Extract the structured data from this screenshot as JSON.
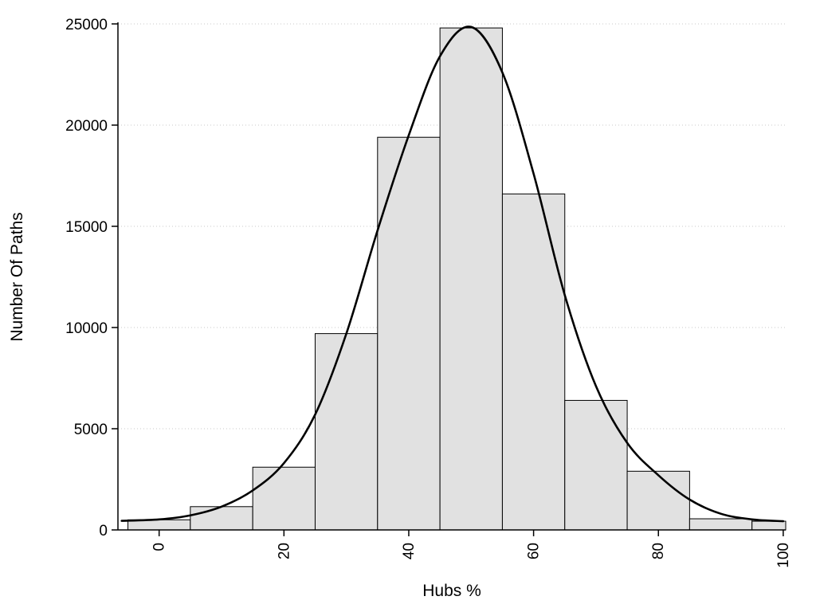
{
  "figure": {
    "background": "#ffffff",
    "description": "Histogram of Hubs % with overlaid kernel density curve"
  },
  "chart_data": {
    "type": "bar",
    "subtype": "histogram-with-density-curve",
    "title": "",
    "xlabel": "Hubs %",
    "ylabel": "Number Of Paths",
    "xlim": [
      -6.6,
      100.4
    ],
    "ylim": [
      0,
      25000
    ],
    "x_ticks": [
      0,
      20,
      40,
      60,
      80,
      100
    ],
    "y_ticks": [
      0,
      5000,
      10000,
      15000,
      20000,
      25000
    ],
    "x_tick_labels": [
      "0",
      "20",
      "40",
      "60",
      "80",
      "100"
    ],
    "y_tick_labels": [
      "0",
      "5000",
      "10000",
      "15000",
      "20000",
      "25000"
    ],
    "bin_edges": [
      -5,
      5,
      15,
      25,
      35,
      45,
      55,
      65,
      75,
      85,
      95,
      105
    ],
    "counts": [
      500,
      1150,
      3100,
      9700,
      19400,
      24800,
      16600,
      6400,
      2900,
      550,
      430
    ],
    "density_curve": {
      "x": [
        -6,
        0,
        5,
        10,
        15,
        20,
        25,
        30,
        35,
        40,
        45,
        50,
        55,
        60,
        65,
        70,
        75,
        80,
        85,
        90,
        95,
        100
      ],
      "y": [
        450,
        520,
        720,
        1150,
        1950,
        3300,
        5700,
        9700,
        14800,
        19500,
        23400,
        24850,
        22600,
        17600,
        11600,
        7100,
        4300,
        2700,
        1500,
        800,
        520,
        430
      ]
    },
    "grid": "horizontal-dotted",
    "legend": "none",
    "colors": {
      "bar_fill": "#e1e1e1",
      "bar_stroke": "#000000",
      "curve": "#000000",
      "gridline": "#c9c9c9",
      "axis": "#000000"
    }
  }
}
